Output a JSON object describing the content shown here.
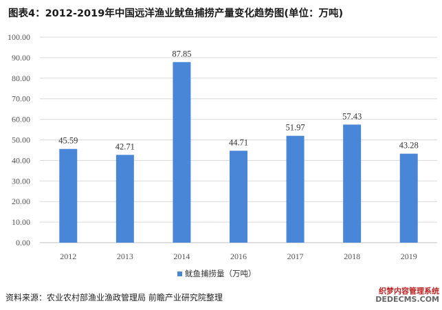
{
  "title": "图表4：2012-2019年中国远洋渔业鱿鱼捕捞产量变化趋势图(单位：万吨)",
  "source": "资料来源：农业农村部渔业渔政管理局 前瞻产业研究院整理",
  "watermark": {
    "line1": "织梦内容管理系统",
    "line2": "DEDECMS.COM"
  },
  "colors": {
    "bar": "#4a86d8",
    "grid": "#d9d9d9",
    "axis": "#bfbfbf"
  },
  "chart_data": {
    "type": "bar",
    "categories": [
      "2012",
      "2013",
      "2014",
      "2016",
      "2017",
      "2018",
      "2019"
    ],
    "series": [
      {
        "name": "鱿鱼捕捞量（万吨）",
        "values": [
          45.59,
          42.71,
          87.85,
          44.71,
          51.97,
          57.43,
          43.28
        ]
      }
    ],
    "data_labels": [
      "45.59",
      "42.71",
      "87.85",
      "44.71",
      "51.97",
      "57.43",
      "43.28"
    ],
    "yticks": [
      "0.00",
      "10.00",
      "20.00",
      "30.00",
      "40.00",
      "50.00",
      "60.00",
      "70.00",
      "80.00",
      "90.00",
      "100.00"
    ],
    "ylim": [
      0,
      100
    ],
    "grid": true,
    "legend": "bottom-center"
  }
}
